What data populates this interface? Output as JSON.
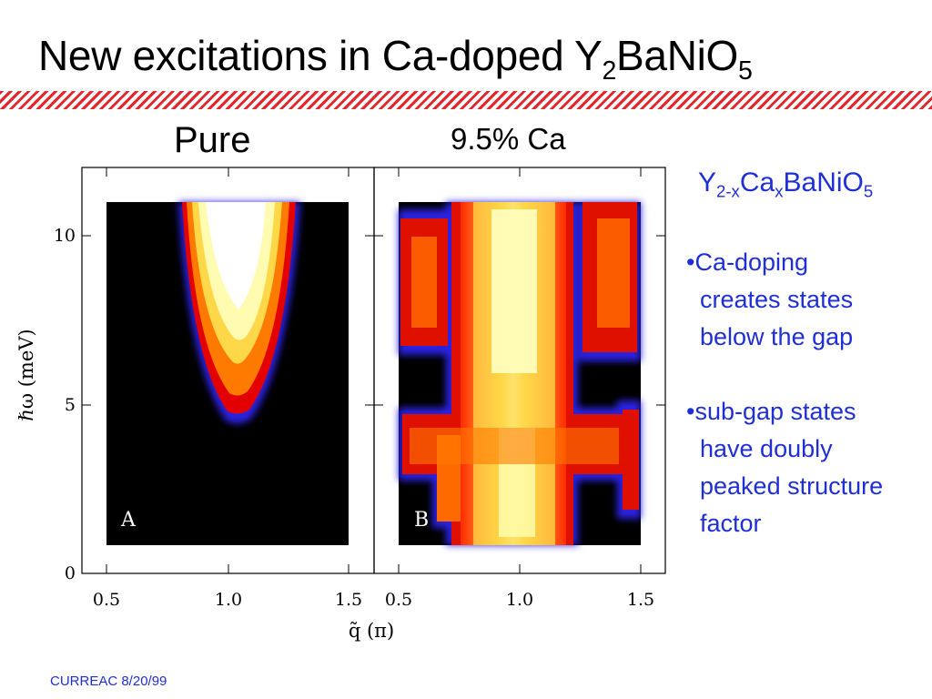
{
  "title": {
    "prefix": "New excitations in Ca-doped Y",
    "sub1": "2",
    "mid": "BaNiO",
    "sub2": "5"
  },
  "panels": {
    "left_title": "Pure",
    "right_title": "9.5% Ca",
    "left_tag": "A",
    "right_tag": "B"
  },
  "axes": {
    "ylabel": "ℏω (meV)",
    "xlabel": "q̃ (π)",
    "yticks": [
      "0",
      "5",
      "10"
    ],
    "xticks": [
      "0.5",
      "1.0",
      "1.5",
      "0.5",
      "1.0",
      "1.5"
    ]
  },
  "formula": {
    "y": "Y",
    "sub_a": "2-x",
    "ca": "Ca",
    "sub_b": "x",
    "rest": "BaNiO",
    "sub_c": "5"
  },
  "bullets": [
    "•Ca-doping\n  creates states\n  below the gap",
    "•sub-gap states\n  have doubly\n  peaked structure\n  factor"
  ],
  "footer": "CURREAC 8/20/99",
  "colors": {
    "accent": "#1f2fd6",
    "hatch": "#e3262b"
  }
}
